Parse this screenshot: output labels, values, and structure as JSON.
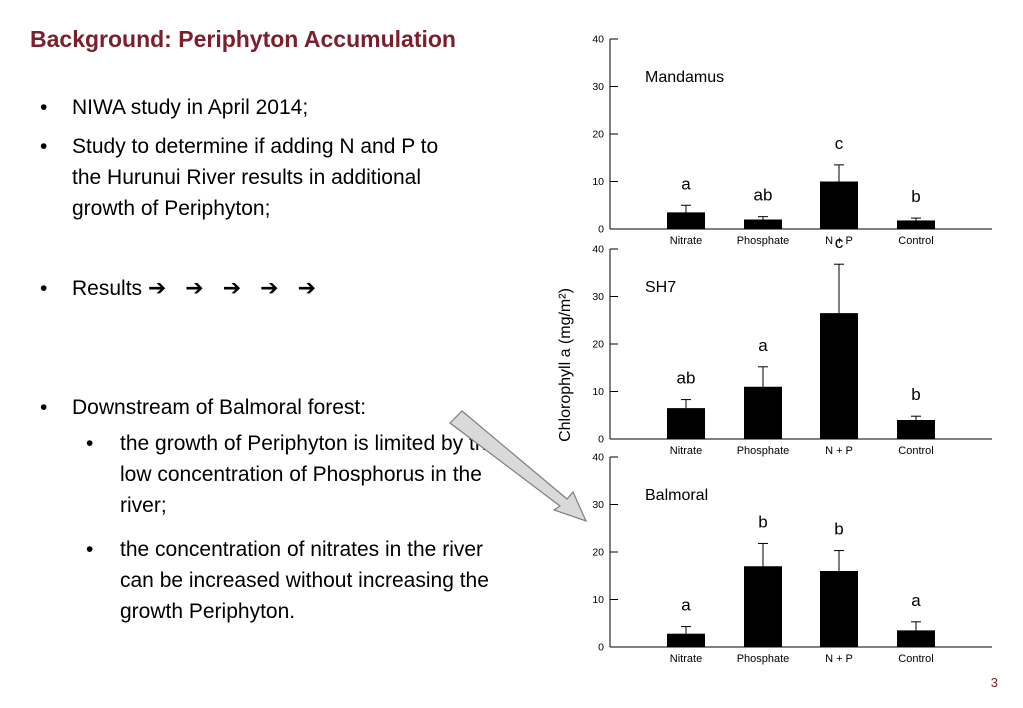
{
  "slide": {
    "title": "Background: Periphyton Accumulation",
    "bullets": [
      {
        "text": "NIWA study in April 2014;"
      },
      {
        "text": "Study to determine if adding N and P to the Hurunui River results in additional growth of Periphyton;"
      },
      {
        "text": "Results",
        "arrows": "➔ ➔ ➔ ➔ ➔"
      },
      {
        "text": "Downstream of Balmoral forest:"
      }
    ],
    "subbullets": [
      {
        "text": "the growth of Periphyton is limited by the low concentration of Phosphorus in the river;"
      },
      {
        "text": "the concentration of nitrates in the river can be increased without increasing the growth Periphyton."
      }
    ],
    "bullet_glyph": "•",
    "page_number": "3"
  },
  "chart_data": [
    {
      "type": "bar",
      "title": "Mandamus",
      "ylabel": "Chlorophyll a (mg/m²)",
      "ylim": [
        0,
        40
      ],
      "yticks": [
        "0",
        "10",
        "20",
        "30",
        "40"
      ],
      "categories": [
        "Nitrate",
        "Phosphate",
        "N + P",
        "Control"
      ],
      "values": [
        3.5,
        2,
        10,
        1.8
      ],
      "errors": [
        1.5,
        0.6,
        3.5,
        0.5
      ],
      "letters": [
        "a",
        "ab",
        "c",
        "b"
      ],
      "bar_color": "#000000"
    },
    {
      "type": "bar",
      "title": "SH7",
      "ylabel": "Chlorophyll a (mg/m²)",
      "ylim": [
        0,
        40
      ],
      "yticks": [
        "0",
        "10",
        "20",
        "30",
        "40"
      ],
      "categories": [
        "Nitrate",
        "Phosphate",
        "N + P",
        "Control"
      ],
      "values": [
        6.5,
        11,
        26.5,
        4
      ],
      "errors": [
        1.8,
        4.2,
        10.3,
        0.8
      ],
      "letters": [
        "ab",
        "a",
        "c",
        "b"
      ],
      "bar_color": "#000000"
    },
    {
      "type": "bar",
      "title": "Balmoral",
      "ylabel": "Chlorophyll a (mg/m²)",
      "ylim": [
        0,
        40
      ],
      "yticks": [
        "0",
        "10",
        "20",
        "30",
        "40"
      ],
      "categories": [
        "Nitrate",
        "Phosphate",
        "N + P",
        "Control"
      ],
      "values": [
        2.8,
        17,
        16,
        3.5
      ],
      "errors": [
        1.5,
        4.8,
        4.3,
        1.8
      ],
      "letters": [
        "a",
        "b",
        "b",
        "a"
      ],
      "bar_color": "#000000"
    }
  ]
}
